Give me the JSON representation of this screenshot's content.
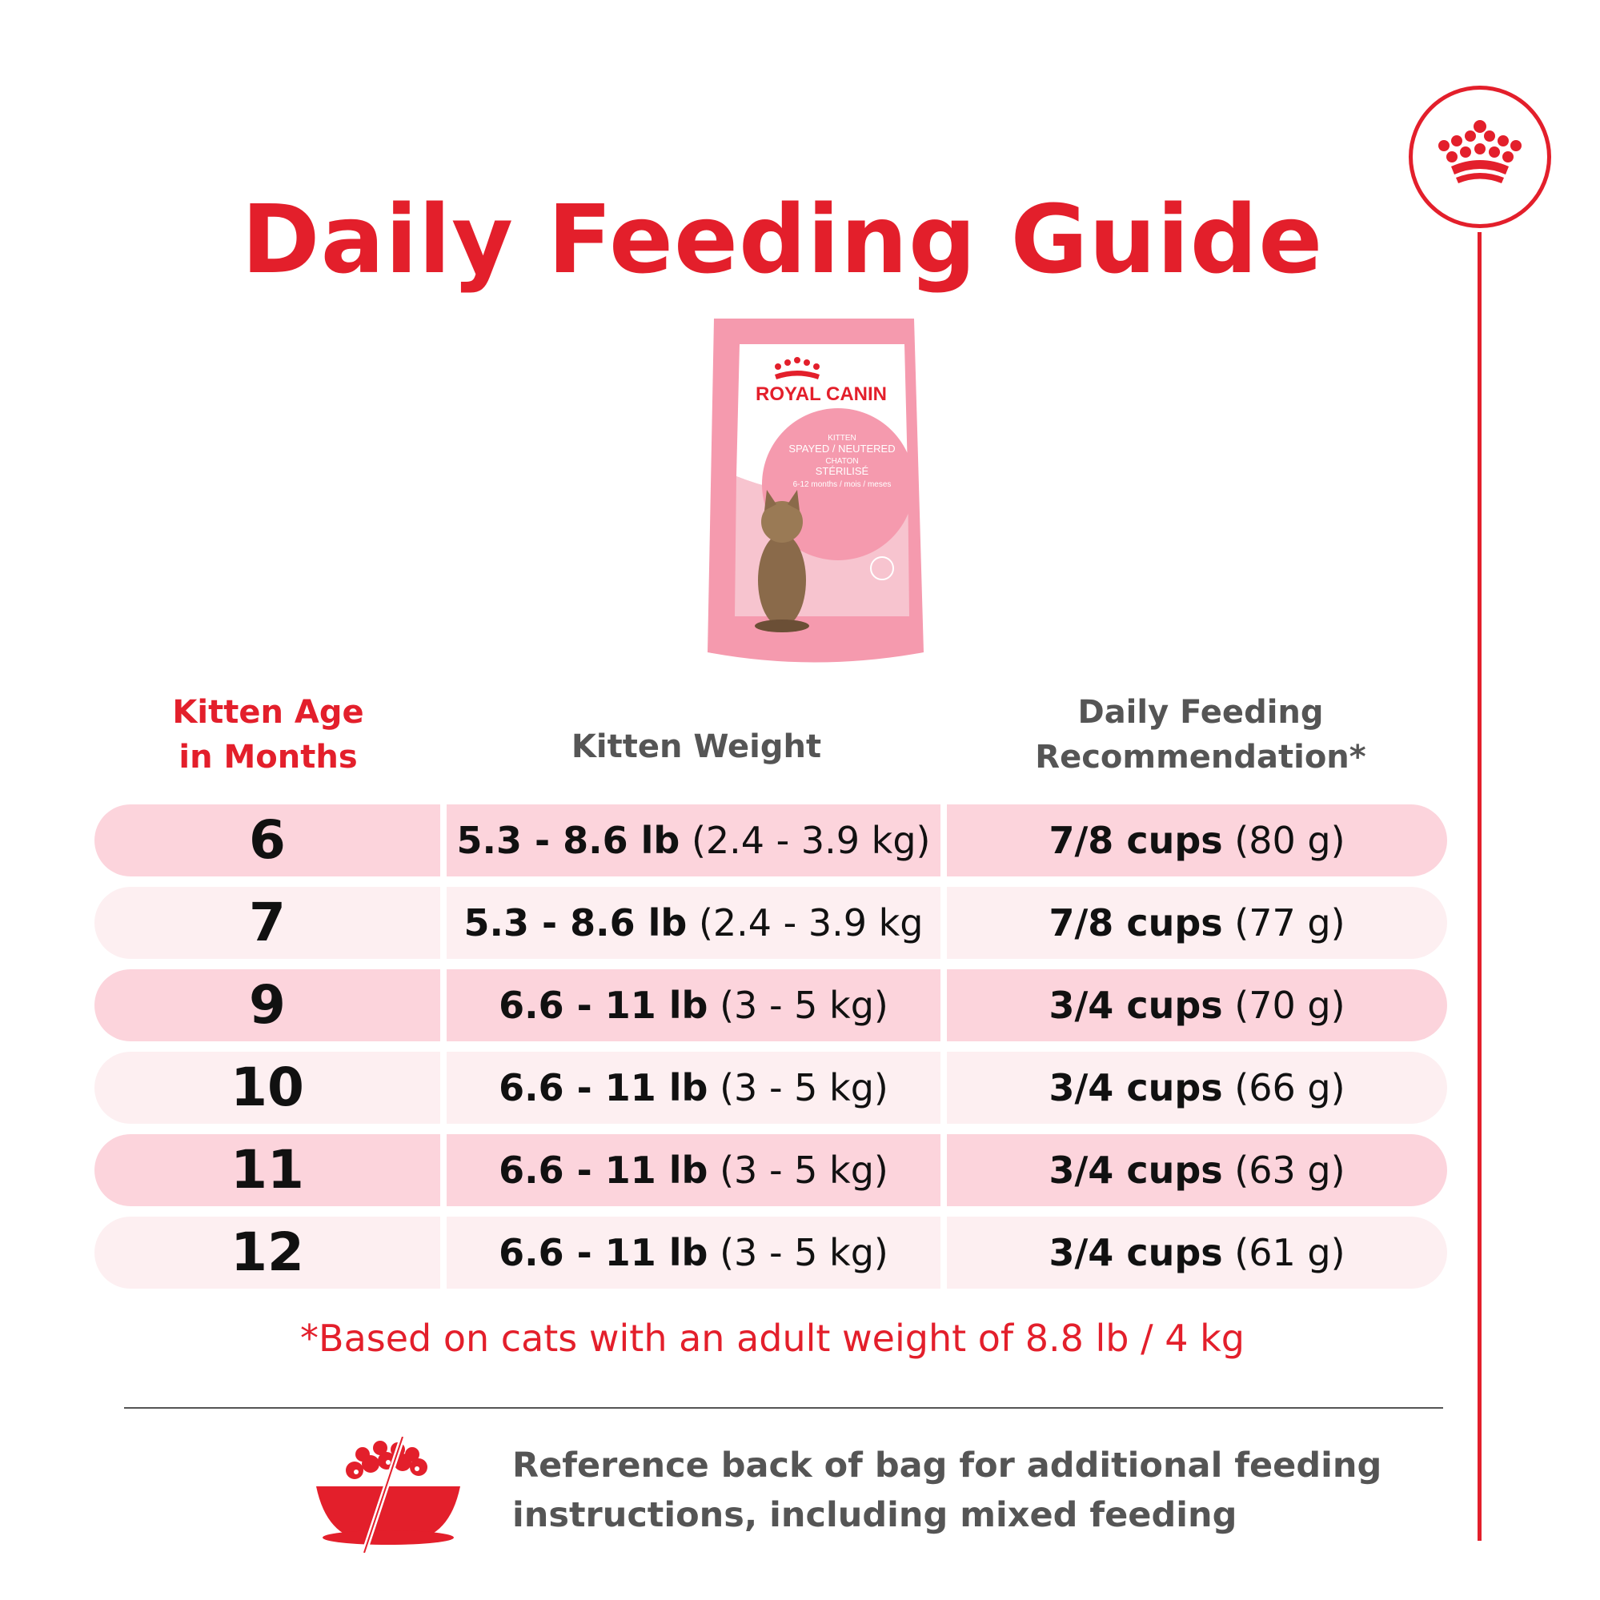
{
  "title": "Daily Feeding Guide",
  "brand": {
    "crown_icon": "royal-canin-crown-icon",
    "accent_color": "#e31f2b"
  },
  "product": {
    "brand_name": "ROYAL CANIN",
    "line1": "KITTEN",
    "line2": "SPAYED / NEUTERED",
    "line3": "CHATON",
    "line4": "STÉRILISÉ",
    "line5": "6-12 months / mois / meses"
  },
  "table": {
    "headers": {
      "age_line1": "Kitten Age",
      "age_line2": "in Months",
      "weight": "Kitten Weight",
      "feeding_line1": "Daily Feeding",
      "feeding_line2": "Recommendation*"
    },
    "rows": [
      {
        "age": "6",
        "weight_lb": "5.3 - 8.6 lb",
        "weight_kg": "(2.4 - 3.9 kg)",
        "cups": "7/8 cups",
        "grams": "(80 g)"
      },
      {
        "age": "7",
        "weight_lb": "5.3 - 8.6 lb",
        "weight_kg": "(2.4 - 3.9 kg",
        "cups": "7/8 cups",
        "grams": "(77 g)"
      },
      {
        "age": "9",
        "weight_lb": "6.6 - 11 lb",
        "weight_kg": "(3 - 5 kg)",
        "cups": "3/4 cups",
        "grams": "(70 g)"
      },
      {
        "age": "10",
        "weight_lb": "6.6 - 11 lb",
        "weight_kg": "(3 - 5 kg)",
        "cups": "3/4 cups",
        "grams": "(66 g)"
      },
      {
        "age": "11",
        "weight_lb": "6.6 - 11 lb",
        "weight_kg": "(3 - 5 kg)",
        "cups": "3/4 cups",
        "grams": "(63 g)"
      },
      {
        "age": "12",
        "weight_lb": "6.6 - 11 lb",
        "weight_kg": "(3 - 5 kg)",
        "cups": "3/4 cups",
        "grams": "(61 g)"
      }
    ]
  },
  "footnote": "*Based on cats with an adult weight of 8.8 lb / 4 kg",
  "note": {
    "icon": "food-bowl-icon",
    "line1": "Reference back of bag for additional feeding",
    "line2": "instructions, including mixed feeding"
  }
}
